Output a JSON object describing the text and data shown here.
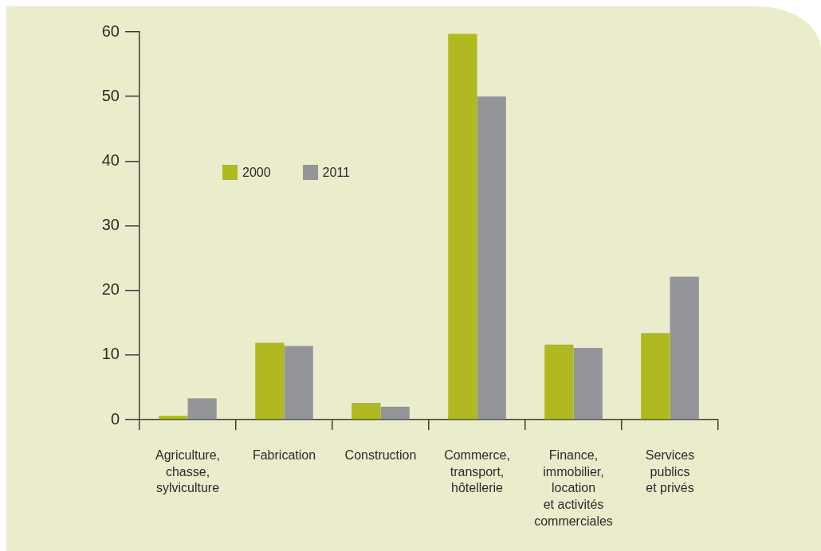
{
  "chart_data": {
    "type": "bar",
    "categories": [
      "Agriculture,\nchasse,\nsylviculture",
      "Fabrication",
      "Construction",
      "Commerce,\ntransport,\nhôtellerie",
      "Finance,\nimmobilier,\nlocation\net activités\ncommerciales",
      "Services\npublics\net privés"
    ],
    "series": [
      {
        "name": "2000",
        "color": "#b0b91f",
        "values": [
          0.6,
          11.9,
          2.6,
          59.7,
          11.6,
          13.4
        ]
      },
      {
        "name": "2011",
        "color": "#949599",
        "values": [
          3.3,
          11.4,
          2.0,
          50.0,
          11.1,
          22.1
        ]
      }
    ],
    "ylim": [
      0,
      60
    ],
    "yticks": [
      0,
      10,
      20,
      30,
      40,
      50,
      60
    ],
    "legend": "top left"
  }
}
